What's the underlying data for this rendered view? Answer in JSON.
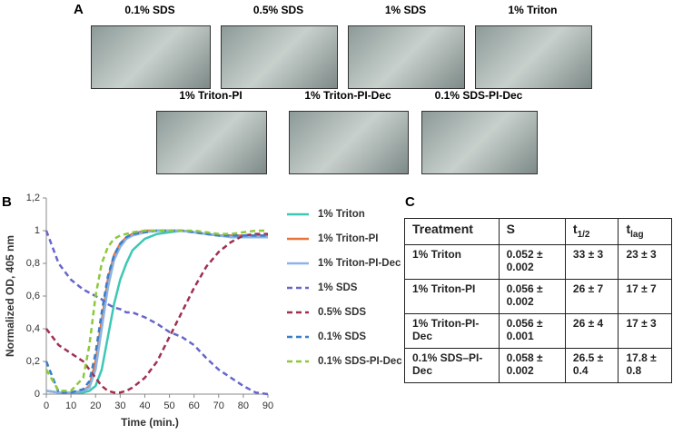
{
  "panels": {
    "a": "A",
    "b": "B",
    "c": "C"
  },
  "photos": [
    "0.1% SDS",
    "0.5% SDS",
    "1% SDS",
    "1% Triton",
    "1% Triton-PI",
    "1% Triton-PI-Dec",
    "0.1% SDS-PI-Dec"
  ],
  "chart_data": {
    "type": "line",
    "xlabel": "Time (min.)",
    "ylabel": "Normalized OD, 405 nm",
    "x": [
      0,
      5,
      10,
      15,
      17.5,
      20,
      22.5,
      25,
      27.5,
      30,
      32.5,
      35,
      40,
      45,
      50,
      55,
      60,
      65,
      70,
      75,
      80,
      85,
      90
    ],
    "xlim": [
      0,
      90
    ],
    "xticks": [
      0,
      10,
      20,
      30,
      40,
      50,
      60,
      70,
      80,
      90
    ],
    "ylim": [
      0,
      1.2
    ],
    "yticks": [
      0,
      {
        "value": 0.2,
        "label": "0,2"
      },
      {
        "value": 0.4,
        "label": "0,4"
      },
      {
        "value": 0.6,
        "label": "0,6"
      },
      {
        "value": 0.8,
        "label": "0,8"
      },
      1,
      {
        "value": 1.2,
        "label": "1,2"
      }
    ],
    "series": [
      {
        "name": "1% Triton",
        "color": "#3cc8b4",
        "style": "solid",
        "values": [
          0.02,
          0.01,
          0.01,
          0.01,
          0.02,
          0.05,
          0.15,
          0.35,
          0.55,
          0.7,
          0.8,
          0.88,
          0.95,
          0.98,
          0.99,
          1,
          0.99,
          0.98,
          0.97,
          0.97,
          0.96,
          0.96,
          0.96
        ]
      },
      {
        "name": "1% Triton-PI",
        "color": "#e8743b",
        "style": "solid",
        "values": [
          0.02,
          0.01,
          0.01,
          0.02,
          0.05,
          0.2,
          0.45,
          0.7,
          0.85,
          0.92,
          0.96,
          0.98,
          1,
          1,
          1,
          1,
          0.99,
          0.98,
          0.97,
          0.97,
          0.97,
          0.97,
          0.97
        ]
      },
      {
        "name": "1% Triton-PI-Dec",
        "color": "#8ab4e8",
        "style": "solid",
        "values": [
          0.02,
          0.01,
          0.01,
          0.02,
          0.04,
          0.15,
          0.4,
          0.65,
          0.82,
          0.9,
          0.95,
          0.97,
          0.99,
          1,
          1,
          1,
          0.99,
          0.98,
          0.97,
          0.96,
          0.96,
          0.96,
          0.96
        ]
      },
      {
        "name": "1% SDS",
        "color": "#6666cc",
        "style": "dashed",
        "values": [
          1,
          0.8,
          0.7,
          0.64,
          0.62,
          0.6,
          0.58,
          0.55,
          0.53,
          0.52,
          0.5,
          0.5,
          0.47,
          0.43,
          0.38,
          0.35,
          0.3,
          0.22,
          0.15,
          0.1,
          0.05,
          0.01,
          0
        ]
      },
      {
        "name": "0.5% SDS",
        "color": "#a0304f",
        "style": "dashed",
        "values": [
          0.4,
          0.3,
          0.25,
          0.2,
          0.15,
          0.1,
          0.05,
          0.02,
          0.01,
          0.01,
          0.02,
          0.04,
          0.1,
          0.2,
          0.35,
          0.5,
          0.65,
          0.78,
          0.87,
          0.93,
          0.97,
          0.98,
          0.98
        ]
      },
      {
        "name": "0.1% SDS",
        "color": "#3a7ec8",
        "style": "dashed",
        "values": [
          0.2,
          0.01,
          0.01,
          0.03,
          0.08,
          0.25,
          0.5,
          0.72,
          0.85,
          0.92,
          0.96,
          0.98,
          0.99,
          1,
          1,
          1,
          0.99,
          0.98,
          0.97,
          0.97,
          0.97,
          0.97,
          0.97
        ]
      },
      {
        "name": "0.1% SDS-PI-Dec",
        "color": "#8cc83c",
        "style": "dashed",
        "values": [
          0.15,
          0.02,
          0.02,
          0.1,
          0.3,
          0.6,
          0.8,
          0.9,
          0.95,
          0.97,
          0.98,
          0.99,
          1,
          1,
          1,
          1,
          1,
          0.99,
          0.98,
          0.98,
          0.99,
          1,
          1
        ]
      }
    ]
  },
  "table": {
    "header": [
      "Treatment",
      "S",
      {
        "main": "t",
        "sub": "1/2"
      },
      {
        "main": "t",
        "sub": "lag"
      }
    ],
    "rows": [
      [
        "1% Triton",
        "0.052 ± 0.002",
        "33 ± 3",
        "23 ± 3"
      ],
      [
        "1% Triton-PI",
        "0.056 ± 0.002",
        "26 ± 7",
        "17 ± 7"
      ],
      [
        "1% Triton-PI-Dec",
        "0.056 ± 0.001",
        "26 ± 4",
        "17 ± 3"
      ],
      [
        "0.1% SDS–PI-Dec",
        "0.058 ± 0.002",
        "26.5 ± 0.4",
        "17.8 ± 0.8"
      ]
    ]
  }
}
